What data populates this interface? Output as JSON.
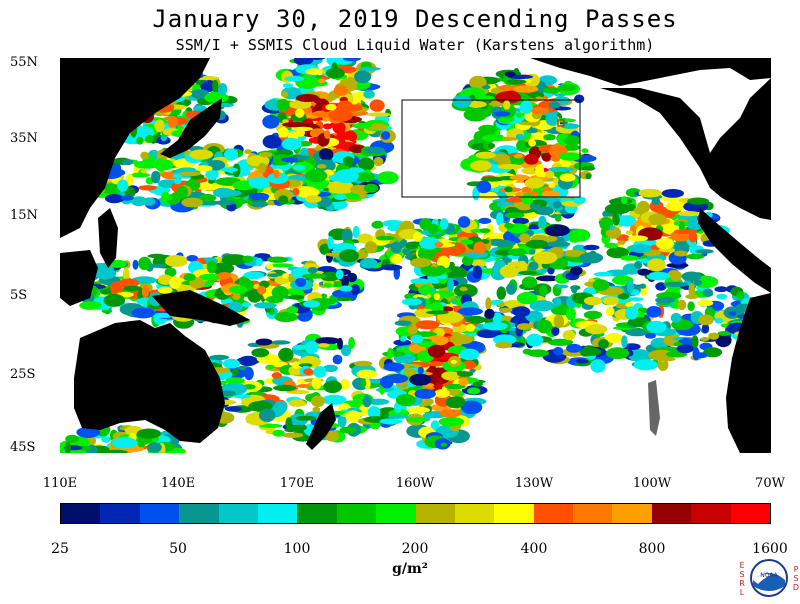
{
  "title": "January 30, 2019  Descending Passes",
  "subtitle": "SSM/I + SSMIS Cloud Liquid Water (Karstens algorithm)",
  "map": {
    "latitude_labels": [
      "55N",
      "35N",
      "15N",
      "5S",
      "25S",
      "45S"
    ],
    "longitude_labels": [
      "110E",
      "140E",
      "170E",
      "160W",
      "130W",
      "100W",
      "70W"
    ],
    "land_color": "#000000",
    "no_data_color": "#ffffff"
  },
  "colorbar": {
    "colors": [
      "#00106a",
      "#0026b4",
      "#0050f0",
      "#0a9690",
      "#00c8c8",
      "#00f0f0",
      "#00960a",
      "#00c800",
      "#00f000",
      "#b4b400",
      "#dcdc00",
      "#ffff00",
      "#ff5000",
      "#ff7800",
      "#ffa000",
      "#960000",
      "#c80000",
      "#ff0000"
    ],
    "tick_labels": [
      "25",
      "50",
      "100",
      "200",
      "400",
      "800",
      "1600"
    ],
    "units": "g/m²"
  },
  "logo": {
    "left_letters": [
      "E",
      "S",
      "R",
      "L"
    ],
    "right_letters": [
      "P",
      "S",
      "D"
    ],
    "badge": "NOAA"
  }
}
